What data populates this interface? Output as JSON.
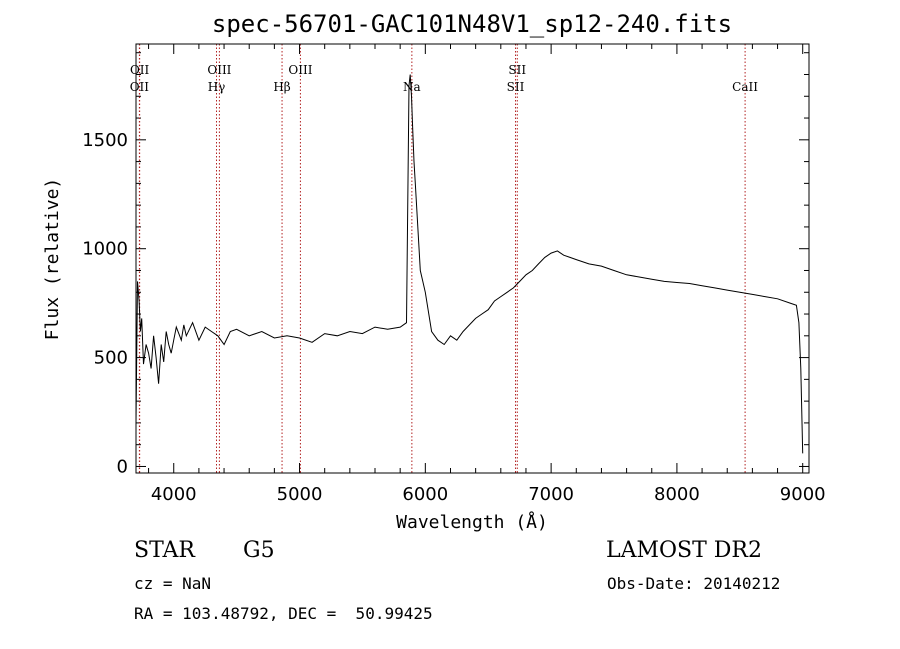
{
  "chart_data": {
    "type": "line",
    "title": "spec-56701-GAC101N48V1_sp12-240.fits",
    "xlabel": "Wavelength (Å)",
    "ylabel": "Flux (relative)",
    "xlim": [
      3700,
      9050
    ],
    "ylim": [
      -30,
      1940
    ],
    "xticks": [
      4000,
      5000,
      6000,
      7000,
      8000,
      9000
    ],
    "yticks": [
      0,
      500,
      1000,
      1500
    ],
    "line_color": "#000000",
    "marker_color": "#b22222",
    "spectral_lines": [
      {
        "label": "OII",
        "wavelength": 3727
      },
      {
        "label": "OII",
        "wavelength": 3729
      },
      {
        "label": "Hγ",
        "wavelength": 4340
      },
      {
        "label": "OIII",
        "wavelength": 4363
      },
      {
        "label": "Hβ",
        "wavelength": 4861
      },
      {
        "label": "OIII",
        "wavelength": 5007
      },
      {
        "label": "Na",
        "wavelength": 5893
      },
      {
        "label": "SII",
        "wavelength": 6717
      },
      {
        "label": "SII",
        "wavelength": 6731
      },
      {
        "label": "CaII",
        "wavelength": 8542
      }
    ],
    "series": [
      {
        "x": [
          3700,
          3712,
          3725,
          3735,
          3745,
          3760,
          3780,
          3800,
          3820,
          3840,
          3860,
          3880,
          3900,
          3920,
          3940,
          3960,
          3980,
          4000,
          4020,
          4040,
          4060,
          4080,
          4100,
          4150,
          4200,
          4250,
          4300,
          4350,
          4400,
          4450,
          4500,
          4600,
          4700,
          4800,
          4900,
          5000,
          5100,
          5200,
          5300,
          5400,
          5500,
          5600,
          5700,
          5800,
          5850,
          5870,
          5880,
          5890,
          5900,
          5910,
          5920,
          5940,
          5960,
          5980,
          6000,
          6050,
          6100,
          6150,
          6200,
          6250,
          6300,
          6350,
          6400,
          6450,
          6500,
          6550,
          6600,
          6650,
          6700,
          6750,
          6800,
          6850,
          6900,
          6950,
          7000,
          7050,
          7100,
          7150,
          7200,
          7300,
          7400,
          7500,
          7600,
          7700,
          7800,
          7900,
          8000,
          8100,
          8200,
          8300,
          8400,
          8500,
          8600,
          8700,
          8800,
          8900,
          8950,
          8970,
          8985,
          9000
        ],
        "y": [
          200,
          850,
          760,
          620,
          680,
          470,
          560,
          520,
          450,
          600,
          500,
          380,
          560,
          480,
          620,
          560,
          520,
          580,
          640,
          610,
          580,
          650,
          600,
          660,
          580,
          640,
          620,
          600,
          560,
          620,
          630,
          600,
          620,
          590,
          600,
          590,
          570,
          610,
          600,
          620,
          610,
          640,
          630,
          640,
          660,
          1750,
          1800,
          1700,
          1550,
          1400,
          1300,
          1100,
          900,
          850,
          800,
          620,
          580,
          560,
          600,
          580,
          620,
          650,
          680,
          700,
          720,
          760,
          780,
          800,
          820,
          850,
          880,
          900,
          930,
          960,
          980,
          990,
          970,
          960,
          950,
          930,
          920,
          900,
          880,
          870,
          860,
          850,
          845,
          840,
          830,
          820,
          810,
          800,
          790,
          780,
          770,
          750,
          740,
          660,
          450,
          60
        ]
      }
    ]
  },
  "info": {
    "star": "STAR",
    "subclass": "G5",
    "survey": "LAMOST DR2",
    "cz": "cz = NaN",
    "obs_date": "Obs-Date: 20140212",
    "coords": "RA = 103.48792, DEC =  50.99425"
  }
}
